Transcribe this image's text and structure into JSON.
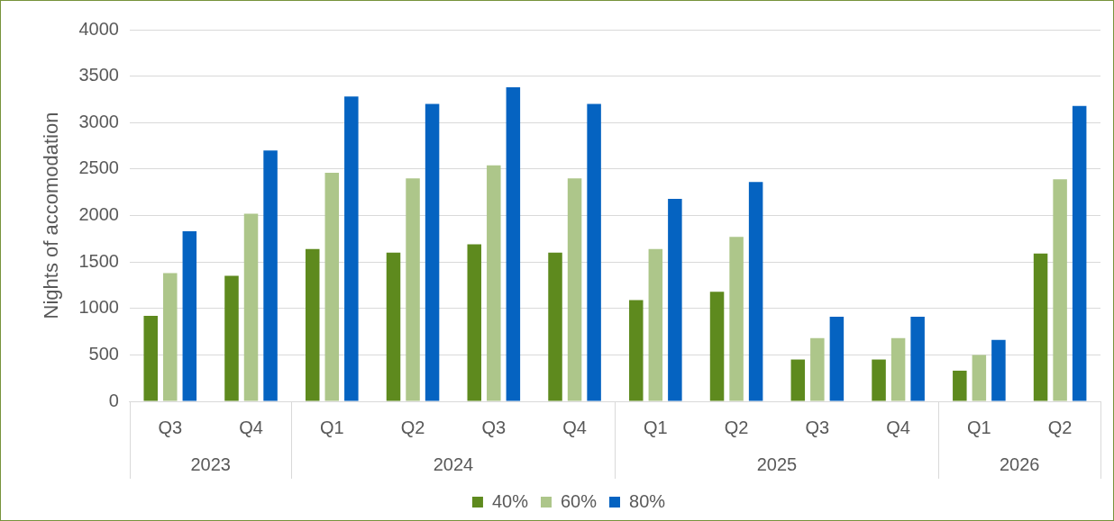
{
  "chart_data": {
    "type": "bar",
    "ylabel": "Nights of accomodation",
    "categories": [
      "Q3",
      "Q4",
      "Q1",
      "Q2",
      "Q3",
      "Q4",
      "Q1",
      "Q2",
      "Q3",
      "Q4",
      "Q1",
      "Q2"
    ],
    "annotations": [
      "2023",
      "2024",
      "2025",
      "2026"
    ],
    "series": [
      {
        "name": "40%",
        "color": "#5e8a1e",
        "values": [
          920,
          1350,
          1640,
          1600,
          1690,
          1600,
          1090,
          1180,
          450,
          450,
          330,
          1590
        ]
      },
      {
        "name": "60%",
        "color": "#adc68a",
        "values": [
          1380,
          2020,
          2460,
          2400,
          2540,
          2400,
          1640,
          1770,
          680,
          680,
          500,
          2390
        ]
      },
      {
        "name": "80%",
        "color": "#0563c1",
        "values": [
          1830,
          2700,
          3280,
          3200,
          3380,
          3200,
          2180,
          2360,
          910,
          910,
          660,
          3180
        ]
      }
    ],
    "ylim": [
      0,
      4000
    ],
    "yticks": [
      0,
      500,
      1000,
      1500,
      2000,
      2500,
      3000,
      3500,
      4000
    ],
    "grid": "y",
    "legend": "bottom"
  }
}
